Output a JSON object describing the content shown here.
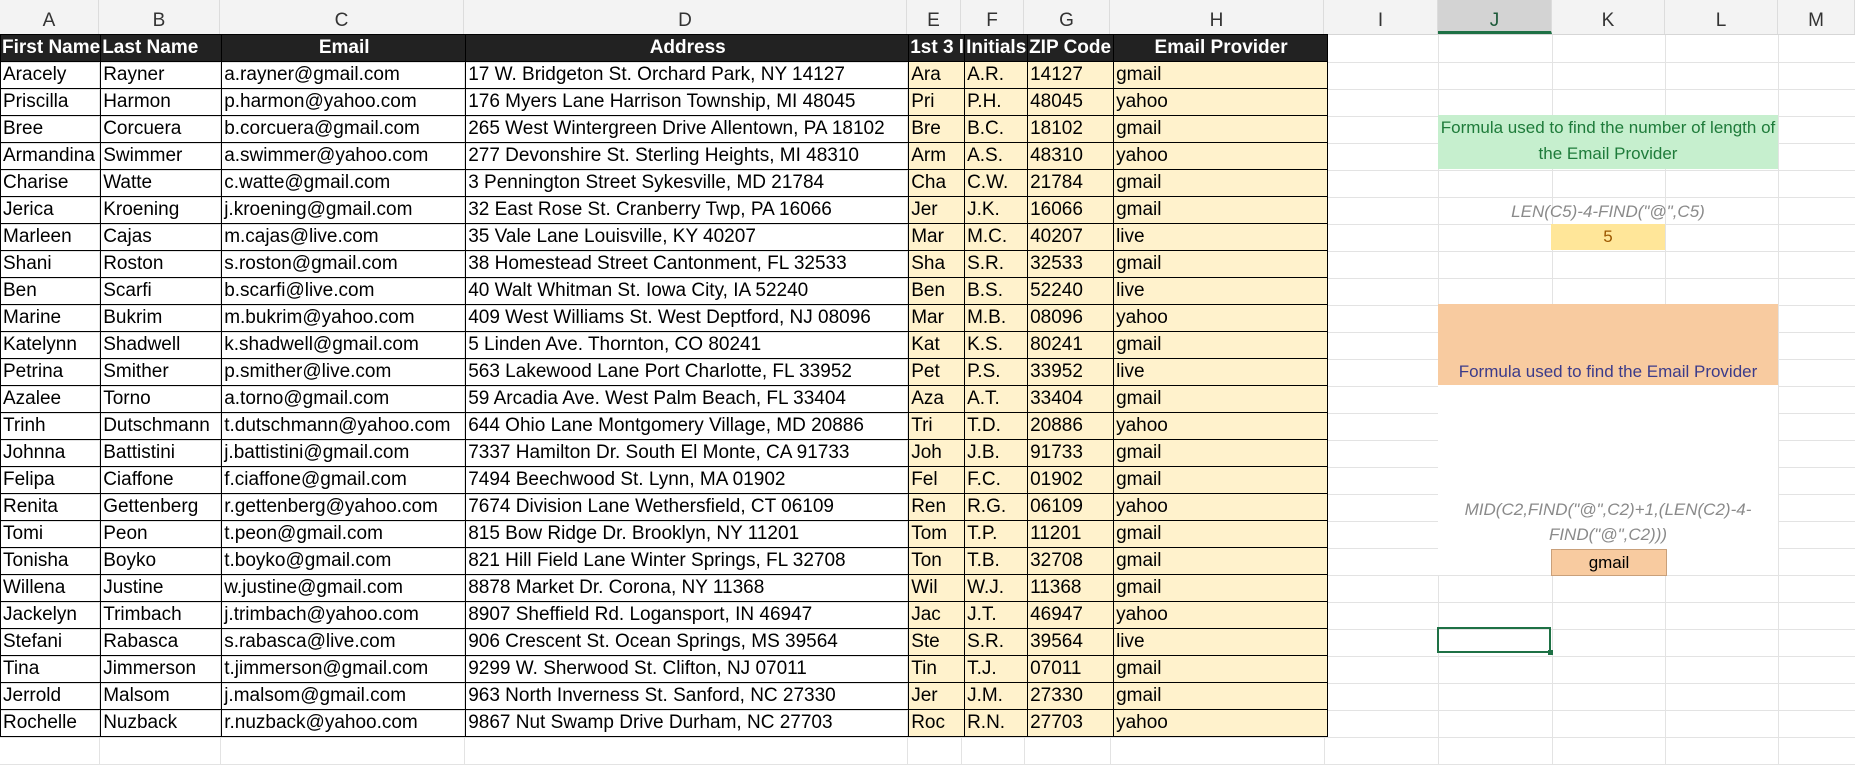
{
  "column_headers": [
    "A",
    "B",
    "C",
    "D",
    "E",
    "F",
    "G",
    "H",
    "I",
    "J",
    "K",
    "L",
    "M"
  ],
  "selected_column": "J",
  "table": {
    "headers": [
      "First Name",
      "Last Name",
      "Email",
      "Address",
      "1st 3 l",
      "Initials",
      "ZIP Code",
      "Email Provider"
    ],
    "rows": [
      [
        "Aracely",
        "Rayner",
        "a.rayner@gmail.com",
        "17 W. Bridgeton St. Orchard Park, NY 14127",
        "Ara",
        "A.R.",
        "14127",
        "gmail"
      ],
      [
        "Priscilla",
        "Harmon",
        "p.harmon@yahoo.com",
        "176 Myers Lane Harrison Township, MI 48045",
        "Pri",
        "P.H.",
        "48045",
        "yahoo"
      ],
      [
        "Bree",
        "Corcuera",
        "b.corcuera@gmail.com",
        "265 West Wintergreen Drive Allentown, PA 18102",
        "Bre",
        "B.C.",
        "18102",
        "gmail"
      ],
      [
        "Armandina",
        "Swimmer",
        "a.swimmer@yahoo.com",
        "277 Devonshire St. Sterling Heights, MI 48310",
        "Arm",
        "A.S.",
        "48310",
        "yahoo"
      ],
      [
        "Charise",
        "Watte",
        "c.watte@gmail.com",
        "3 Pennington Street Sykesville, MD 21784",
        "Cha",
        "C.W.",
        "21784",
        "gmail"
      ],
      [
        "Jerica",
        "Kroening",
        "j.kroening@gmail.com",
        "32 East Rose St. Cranberry Twp, PA 16066",
        "Jer",
        "J.K.",
        "16066",
        "gmail"
      ],
      [
        "Marleen",
        "Cajas",
        "m.cajas@live.com",
        "35 Vale Lane Louisville, KY 40207",
        "Mar",
        "M.C.",
        "40207",
        "live"
      ],
      [
        "Shani",
        "Roston",
        "s.roston@gmail.com",
        "38 Homestead Street Cantonment, FL 32533",
        "Sha",
        "S.R.",
        "32533",
        "gmail"
      ],
      [
        "Ben",
        "Scarfi",
        "b.scarfi@live.com",
        "40 Walt Whitman St. Iowa City, IA 52240",
        "Ben",
        "B.S.",
        "52240",
        "live"
      ],
      [
        "Marine",
        "Bukrim",
        "m.bukrim@yahoo.com",
        "409 West Williams St. West Deptford, NJ 08096",
        "Mar",
        "M.B.",
        "08096",
        "yahoo"
      ],
      [
        "Katelynn",
        "Shadwell",
        "k.shadwell@gmail.com",
        "5 Linden Ave. Thornton, CO 80241",
        "Kat",
        "K.S.",
        "80241",
        "gmail"
      ],
      [
        "Petrina",
        "Smither",
        "p.smither@live.com",
        "563 Lakewood Lane Port Charlotte, FL 33952",
        "Pet",
        "P.S.",
        "33952",
        "live"
      ],
      [
        "Azalee",
        "Torno",
        "a.torno@gmail.com",
        "59 Arcadia Ave. West Palm Beach, FL 33404",
        "Aza",
        "A.T.",
        "33404",
        "gmail"
      ],
      [
        "Trinh",
        "Dutschmann",
        "t.dutschmann@yahoo.com",
        "644 Ohio Lane Montgomery Village, MD 20886",
        "Tri",
        "T.D.",
        "20886",
        "yahoo"
      ],
      [
        "Johnna",
        "Battistini",
        "j.battistini@gmail.com",
        "7337 Hamilton Dr. South El Monte, CA 91733",
        "Joh",
        "J.B.",
        "91733",
        "gmail"
      ],
      [
        "Felipa",
        "Ciaffone",
        "f.ciaffone@gmail.com",
        "7494 Beechwood St. Lynn, MA 01902",
        "Fel",
        "F.C.",
        "01902",
        "gmail"
      ],
      [
        "Renita",
        "Gettenberg",
        "r.gettenberg@yahoo.com",
        "7674 Division Lane Wethersfield, CT 06109",
        "Ren",
        "R.G.",
        "06109",
        "yahoo"
      ],
      [
        "Tomi",
        "Peon",
        "t.peon@gmail.com",
        "815 Bow Ridge Dr. Brooklyn, NY 11201",
        "Tom",
        "T.P.",
        "11201",
        "gmail"
      ],
      [
        "Tonisha",
        "Boyko",
        "t.boyko@gmail.com",
        "821 Hill Field Lane Winter Springs, FL 32708",
        "Ton",
        "T.B.",
        "32708",
        "gmail"
      ],
      [
        "Willena",
        "Justine",
        "w.justine@gmail.com",
        "8878 Market Dr. Corona, NY 11368",
        "Wil",
        "W.J.",
        "11368",
        "gmail"
      ],
      [
        "Jackelyn",
        "Trimbach",
        "j.trimbach@yahoo.com",
        "8907 Sheffield Rd. Logansport, IN 46947",
        "Jac",
        "J.T.",
        "46947",
        "yahoo"
      ],
      [
        "Stefani",
        "Rabasca",
        "s.rabasca@live.com",
        "906 Crescent St. Ocean Springs, MS 39564",
        "Ste",
        "S.R.",
        "39564",
        "live"
      ],
      [
        "Tina",
        "Jimmerson",
        "t.jimmerson@gmail.com",
        "9299 W. Sherwood St. Clifton, NJ 07011",
        "Tin",
        "T.J.",
        "07011",
        "gmail"
      ],
      [
        "Jerrold",
        "Malsom",
        "j.malsom@gmail.com",
        "963 North Inverness St. Sanford, NC 27330",
        "Jer",
        "J.M.",
        "27330",
        "gmail"
      ],
      [
        "Rochelle",
        "Nuzback",
        "r.nuzback@yahoo.com",
        "9867 Nut Swamp Drive Durham, NC 27703",
        "Roc",
        "R.N.",
        "27703",
        "yahoo"
      ]
    ]
  },
  "notes": {
    "length_title": "Formula used to find the number of length of the Email Provider",
    "length_formula": "LEN(C5)-4-FIND(\"@\",C5)",
    "length_result": "5",
    "provider_title": "Formula used to find the Email Provider",
    "provider_formula_line1": "MID(C2,FIND(\"@\",C2)+1,(LEN(C2)-4-",
    "provider_formula_line2": "FIND(\"@\",C2)))",
    "provider_result": "gmail"
  },
  "colors": {
    "header_bg": "#222222",
    "highlight_fill": "#fff2cc",
    "green_note": "#c6efce",
    "orange_note": "#f8cba0",
    "yellow_result": "#ffe699",
    "selection": "#1e7145"
  }
}
